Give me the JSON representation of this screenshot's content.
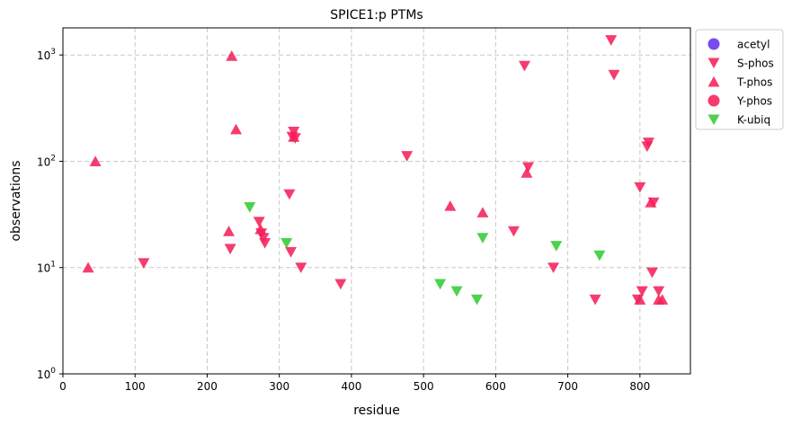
{
  "chart_data": {
    "type": "scatter",
    "title": "SPICE1:p PTMs",
    "xlabel": "residue",
    "ylabel": "observations",
    "xlim": [
      0,
      870
    ],
    "ylim": [
      1,
      1800
    ],
    "yscale": "log",
    "grid": true,
    "legend_position": "outside-top-right",
    "x_ticks": [
      {
        "value": 0,
        "label": "0"
      },
      {
        "value": 100,
        "label": "100"
      },
      {
        "value": 200,
        "label": "200"
      },
      {
        "value": 300,
        "label": "300"
      },
      {
        "value": 400,
        "label": "400"
      },
      {
        "value": 500,
        "label": "500"
      },
      {
        "value": 600,
        "label": "600"
      },
      {
        "value": 700,
        "label": "700"
      },
      {
        "value": 800,
        "label": "800"
      }
    ],
    "y_ticks": [
      {
        "value": 1,
        "base": "10",
        "exp": "0"
      },
      {
        "value": 10,
        "base": "10",
        "exp": "1"
      },
      {
        "value": 100,
        "base": "10",
        "exp": "2"
      },
      {
        "value": 1000,
        "base": "10",
        "exp": "3"
      }
    ],
    "series": [
      {
        "name": "acetyl",
        "marker": "circle",
        "color": "#6633ee",
        "points": []
      },
      {
        "name": "S-phos",
        "marker": "triangle-down",
        "color": "#f5215b",
        "points": [
          {
            "x": 112,
            "y": 11
          },
          {
            "x": 232,
            "y": 15
          },
          {
            "x": 272,
            "y": 27
          },
          {
            "x": 275,
            "y": 21
          },
          {
            "x": 278,
            "y": 19
          },
          {
            "x": 280,
            "y": 17
          },
          {
            "x": 314,
            "y": 49
          },
          {
            "x": 316,
            "y": 14
          },
          {
            "x": 318,
            "y": 170
          },
          {
            "x": 320,
            "y": 190
          },
          {
            "x": 322,
            "y": 165
          },
          {
            "x": 330,
            "y": 10
          },
          {
            "x": 385,
            "y": 7
          },
          {
            "x": 477,
            "y": 112
          },
          {
            "x": 625,
            "y": 22
          },
          {
            "x": 640,
            "y": 790
          },
          {
            "x": 645,
            "y": 88
          },
          {
            "x": 680,
            "y": 10
          },
          {
            "x": 738,
            "y": 5
          },
          {
            "x": 760,
            "y": 1380
          },
          {
            "x": 764,
            "y": 650
          },
          {
            "x": 797,
            "y": 5
          },
          {
            "x": 800,
            "y": 57
          },
          {
            "x": 803,
            "y": 6
          },
          {
            "x": 810,
            "y": 138
          },
          {
            "x": 812,
            "y": 150
          },
          {
            "x": 817,
            "y": 9
          },
          {
            "x": 819,
            "y": 41
          },
          {
            "x": 826,
            "y": 6
          }
        ]
      },
      {
        "name": "T-phos",
        "marker": "triangle-up",
        "color": "#f5215b",
        "points": [
          {
            "x": 35,
            "y": 10
          },
          {
            "x": 45,
            "y": 100
          },
          {
            "x": 230,
            "y": 22
          },
          {
            "x": 234,
            "y": 980
          },
          {
            "x": 240,
            "y": 200
          },
          {
            "x": 274,
            "y": 23
          },
          {
            "x": 320,
            "y": 170
          },
          {
            "x": 537,
            "y": 38
          },
          {
            "x": 582,
            "y": 33
          },
          {
            "x": 643,
            "y": 78
          },
          {
            "x": 800,
            "y": 5
          },
          {
            "x": 815,
            "y": 41
          },
          {
            "x": 826,
            "y": 5
          },
          {
            "x": 831,
            "y": 5
          }
        ]
      },
      {
        "name": "Y-phos",
        "marker": "circle",
        "color": "#f5215b",
        "points": []
      },
      {
        "name": "K-ubiq",
        "marker": "triangle-down",
        "color": "#33cc33",
        "points": [
          {
            "x": 259,
            "y": 37
          },
          {
            "x": 310,
            "y": 17
          },
          {
            "x": 523,
            "y": 7
          },
          {
            "x": 546,
            "y": 6
          },
          {
            "x": 574,
            "y": 5
          },
          {
            "x": 582,
            "y": 19
          },
          {
            "x": 684,
            "y": 16
          },
          {
            "x": 744,
            "y": 13
          }
        ]
      }
    ]
  }
}
